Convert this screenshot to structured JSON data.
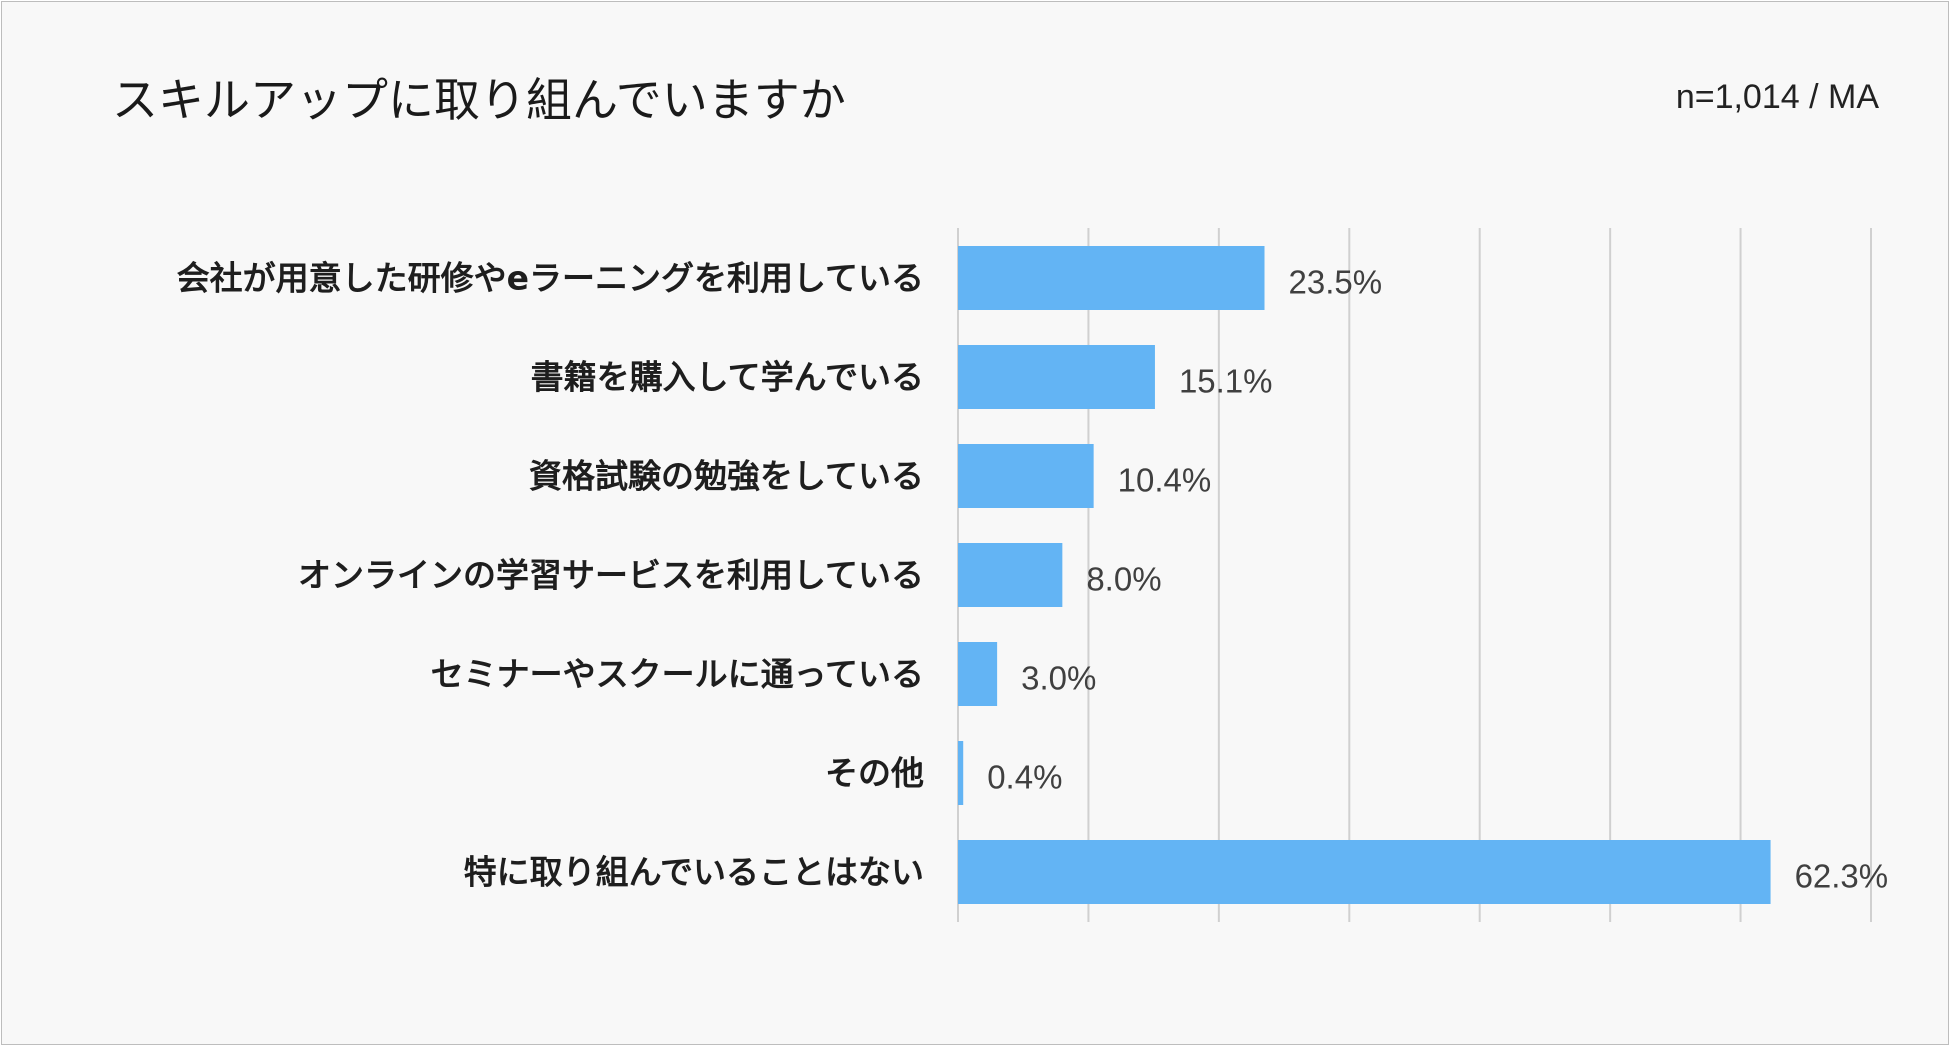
{
  "header": {
    "title": "スキルアップに取り組んでいますか",
    "note": "n=1,014 / MA"
  },
  "chart_data": {
    "type": "bar",
    "orientation": "horizontal",
    "title": "スキルアップに取り組んでいますか",
    "categories": [
      "会社が用意した研修やeラーニングを利用している",
      "書籍を購入して学んでいる",
      "資格試験の勉強をしている",
      "オンラインの学習サービスを利用している",
      "セミナーやスクールに通っている",
      "その他",
      "特に取り組んでいることはない"
    ],
    "values": [
      23.5,
      15.1,
      10.4,
      8.0,
      3.0,
      0.4,
      62.3
    ],
    "value_labels": [
      "23.5%",
      "15.1%",
      "10.4%",
      "8.0%",
      "3.0%",
      "0.4%",
      "62.3%"
    ],
    "unit": "%",
    "xlim": [
      0,
      70
    ],
    "grid": true,
    "legend": "none",
    "bar_color": "#63b4f4"
  }
}
